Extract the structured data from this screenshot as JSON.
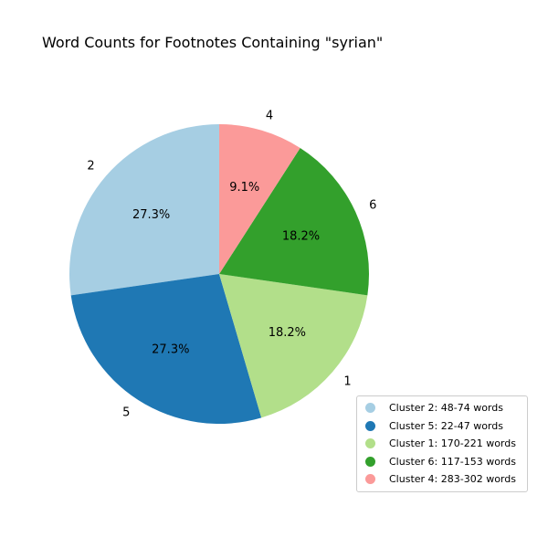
{
  "chart_data": {
    "type": "pie",
    "title": "Word Counts for Footnotes Containing \"syrian\"",
    "start_angle_deg": 90,
    "direction": "counterclockwise",
    "slices": [
      {
        "label": "2",
        "value": 27.3,
        "pct_label": "27.3%",
        "color": "#a6cee3"
      },
      {
        "label": "5",
        "value": 27.3,
        "pct_label": "27.3%",
        "color": "#1f78b4"
      },
      {
        "label": "1",
        "value": 18.2,
        "pct_label": "18.2%",
        "color": "#b2df8a"
      },
      {
        "label": "6",
        "value": 18.2,
        "pct_label": "18.2%",
        "color": "#33a02c"
      },
      {
        "label": "4",
        "value": 9.1,
        "pct_label": "9.1%",
        "color": "#fb9a99"
      }
    ],
    "legend": {
      "placement": "lower-right",
      "entries": [
        {
          "text": "Cluster 2: 48-74 words",
          "color": "#a6cee3"
        },
        {
          "text": "Cluster 5: 22-47 words",
          "color": "#1f78b4"
        },
        {
          "text": "Cluster 1: 170-221 words",
          "color": "#b2df8a"
        },
        {
          "text": "Cluster 6: 117-153 words",
          "color": "#33a02c"
        },
        {
          "text": "Cluster 4: 283-302 words",
          "color": "#fb9a99"
        }
      ]
    }
  }
}
